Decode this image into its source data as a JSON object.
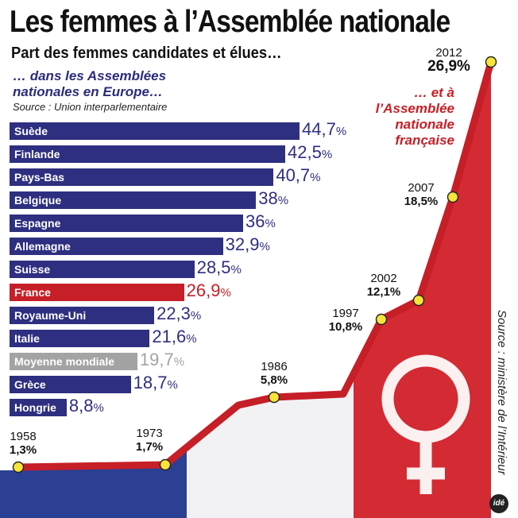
{
  "title": "Les femmes à l’Assemblée nationale",
  "subtitle": "Part des femmes candidates et élues…",
  "europe_heading": "… dans les Assemblées nationales en Europe…",
  "source_left": "Source : Union interparlementaire",
  "france_heading": "… et à l’Assemblée nationale française",
  "source_right": "Source : ministère de l’Intérieur",
  "logo": "idé",
  "colors": {
    "bar_blue": "#2e2f80",
    "france_red": "#c61f27",
    "world_grey": "#a3a3a3",
    "line_red": "#c61f27",
    "point_yellow": "#f6e43a"
  },
  "chart_data": [
    {
      "type": "bar",
      "orientation": "horizontal",
      "categories": [
        "Suède",
        "Finlande",
        "Pays-Bas",
        "Belgique",
        "Espagne",
        "Allemagne",
        "Suisse",
        "France",
        "Royaume-Uni",
        "Italie",
        "Moyenne mondiale",
        "Grèce",
        "Hongrie"
      ],
      "values": [
        44.7,
        42.5,
        40.7,
        38,
        36,
        32.9,
        28.5,
        26.9,
        22.3,
        21.6,
        19.7,
        18.7,
        8.8
      ],
      "labels": [
        "44,7",
        "42,5",
        "40,7",
        "38",
        "36",
        "32,9",
        "28,5",
        "26,9",
        "22,3",
        "21,6",
        "19,7",
        "18,7",
        "8,8"
      ],
      "unit": "%",
      "highlight": {
        "France": "red",
        "Moyenne mondiale": "grey"
      }
    },
    {
      "type": "line",
      "x": [
        1958,
        1973,
        1986,
        1997,
        2002,
        2007,
        2012
      ],
      "y": [
        1.3,
        1.7,
        5.8,
        10.8,
        12.1,
        18.5,
        26.9
      ],
      "labels": [
        "1,3%",
        "1,7%",
        "5,8%",
        "10,8%",
        "12,1%",
        "18,5%",
        "26,9%"
      ]
    }
  ]
}
